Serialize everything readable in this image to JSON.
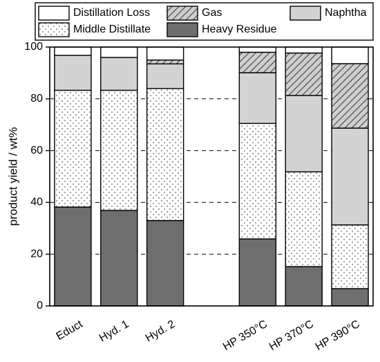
{
  "chart_data": {
    "type": "bar",
    "stacked": true,
    "title": "",
    "xlabel": "",
    "ylabel": "product yield / wt%",
    "ylim": [
      0,
      100
    ],
    "yticks": [
      0,
      20,
      40,
      60,
      80,
      100
    ],
    "grid": "horizontal dashed (20, 40, 60, 80)",
    "legend_position": "top",
    "categories": [
      "Educt",
      "Hyd. 1",
      "Hyd. 2",
      "",
      "HP 350°C",
      "HP 370°C",
      "HP 390°C"
    ],
    "series": [
      {
        "name": "Heavy Residue",
        "fill": "solid",
        "color": "#6e6e6e",
        "values": [
          38.2,
          36.9,
          33.0,
          null,
          25.9,
          15.2,
          6.7
        ]
      },
      {
        "name": "Middle Distillate",
        "fill": "dotted",
        "color": "#ffffff",
        "values": [
          45.1,
          46.4,
          51.0,
          null,
          44.6,
          36.6,
          24.6
        ]
      },
      {
        "name": "Naphtha",
        "fill": "light-gray",
        "color": "#d3d3d3",
        "values": [
          13.5,
          12.7,
          9.5,
          null,
          19.6,
          29.5,
          37.4
        ]
      },
      {
        "name": "Gas",
        "fill": "hatched",
        "color": "#b0b0b0",
        "values": [
          0.0,
          0.0,
          1.5,
          null,
          7.9,
          16.4,
          24.9
        ]
      },
      {
        "name": "Distillation Loss",
        "fill": "white",
        "color": "#ffffff",
        "values": [
          3.2,
          4.0,
          5.0,
          null,
          2.0,
          2.3,
          6.4
        ]
      }
    ],
    "legend": [
      {
        "name": "Distillation Loss",
        "fill": "white"
      },
      {
        "name": "Gas",
        "fill": "hatched"
      },
      {
        "name": "Naphtha",
        "fill": "light-gray"
      },
      {
        "name": "Middle Distillate",
        "fill": "dotted"
      },
      {
        "name": "Heavy Residue",
        "fill": "solid"
      }
    ]
  }
}
